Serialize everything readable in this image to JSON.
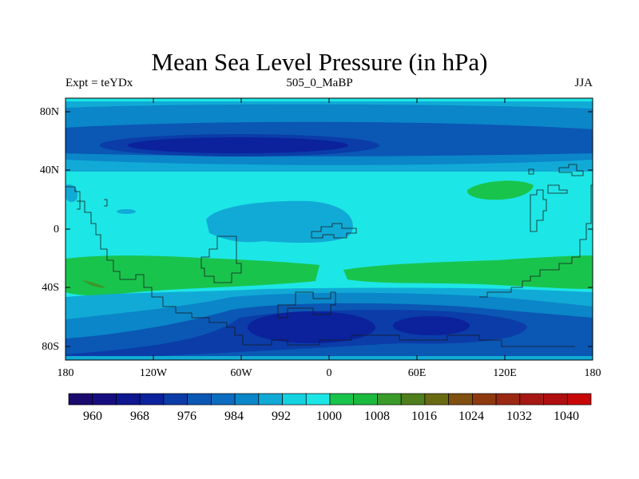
{
  "title": "Mean Sea Level Pressure (in hPa)",
  "subtitle_left": "Expt = teYDx",
  "subtitle_center": "505_0_MaBP",
  "subtitle_right": "JJA",
  "axes": {
    "x_ticks": [
      "180",
      "120W",
      "60W",
      "0",
      "60E",
      "120E",
      "180"
    ],
    "y_ticks": [
      "80N",
      "40N",
      "0",
      "40S",
      "80S"
    ]
  },
  "colorbar": {
    "labels": [
      "960",
      "968",
      "976",
      "984",
      "992",
      "1000",
      "1008",
      "1016",
      "1024",
      "1032",
      "1040"
    ],
    "colors": [
      "#1a0a6e",
      "#160d80",
      "#0e1690",
      "#0b229c",
      "#0b3ca8",
      "#0b57b4",
      "#0c6cc0",
      "#0b86c8",
      "#11aad6",
      "#14d2e0",
      "#1de6e6",
      "#19c44d",
      "#1bba3e",
      "#3a9a2a",
      "#4f7e1c",
      "#6b6a14",
      "#7f5010",
      "#8e3a10",
      "#9a2812",
      "#a61814",
      "#b00e10",
      "#c80808"
    ]
  },
  "chart_data": {
    "type": "heatmap",
    "title": "Mean Sea Level Pressure (in hPa)",
    "variable": "Mean Sea Level Pressure",
    "units": "hPa",
    "experiment": "teYDx",
    "period": "505_0_MaBP",
    "season": "JJA",
    "x_range": [
      -180,
      180
    ],
    "y_range": [
      -90,
      90
    ],
    "x_tick_labels": [
      "180",
      "120W",
      "60W",
      "0",
      "60E",
      "120E",
      "180"
    ],
    "y_tick_labels": [
      "80N",
      "40N",
      "0",
      "40S",
      "80S"
    ],
    "contour_levels": [
      960,
      964,
      968,
      972,
      976,
      980,
      984,
      988,
      992,
      996,
      1000,
      1004,
      1008,
      1012,
      1016,
      1020,
      1024,
      1028,
      1032,
      1036,
      1040
    ],
    "colorbar_labels": [
      960,
      968,
      976,
      984,
      992,
      1000,
      1008,
      1016,
      1024,
      1032,
      1040
    ]
  }
}
